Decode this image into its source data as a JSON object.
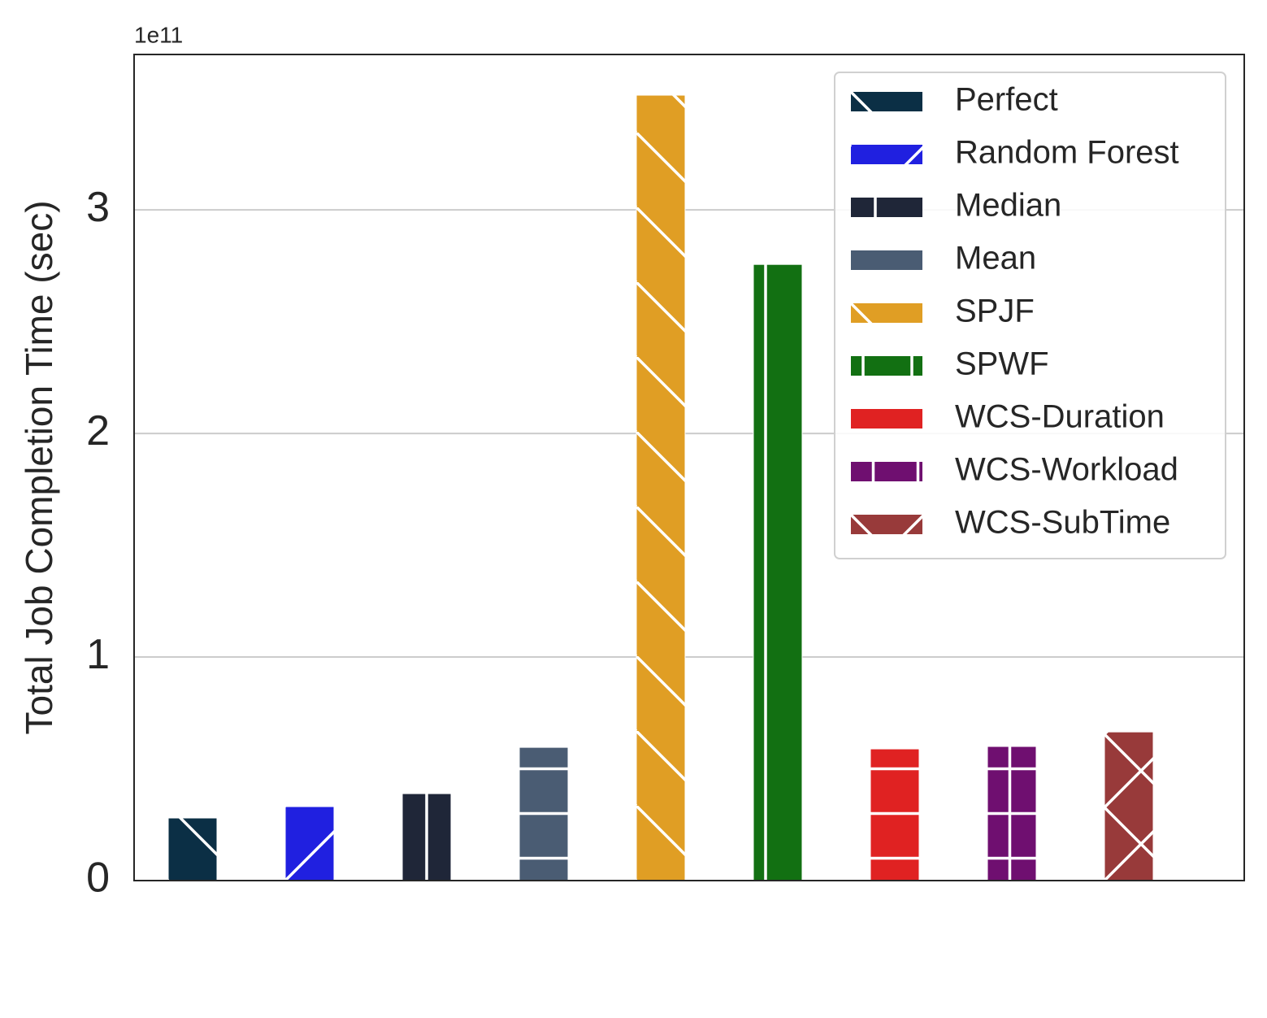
{
  "chart_data": {
    "type": "bar",
    "y_label": "Total Job Completion Time (sec)",
    "offset_text": "1e11",
    "ylim": [
      0,
      3.695
    ],
    "yticks": [
      0,
      1,
      2,
      3
    ],
    "grid": true,
    "legend": "upper right",
    "series": [
      {
        "name": "Perfect",
        "color": "#0b2f45",
        "hatch": "\\",
        "values": [
          0.28
        ]
      },
      {
        "name": "Random Forest",
        "color": "#2020e0",
        "hatch": "/",
        "values": [
          0.331
        ]
      },
      {
        "name": "Median",
        "color": "#1f2638",
        "hatch": "|",
        "values": [
          0.389
        ]
      },
      {
        "name": "Mean",
        "color": "#4a5c73",
        "hatch": "-",
        "values": [
          0.596
        ]
      },
      {
        "name": "SPJF",
        "color": "#e09e24",
        "hatch": "\\",
        "values": [
          3.513
        ]
      },
      {
        "name": "SPWF",
        "color": "#127012",
        "hatch": "||",
        "values": [
          2.756
        ]
      },
      {
        "name": "WCS-Duration",
        "color": "#e02222",
        "hatch": "-",
        "values": [
          0.589
        ]
      },
      {
        "name": "WCS-Workload",
        "color": "#6f0f70",
        "hatch": "+",
        "values": [
          0.6
        ]
      },
      {
        "name": "WCS-SubTime",
        "color": "#983a3a",
        "hatch": "x",
        "values": [
          0.665
        ]
      }
    ]
  }
}
